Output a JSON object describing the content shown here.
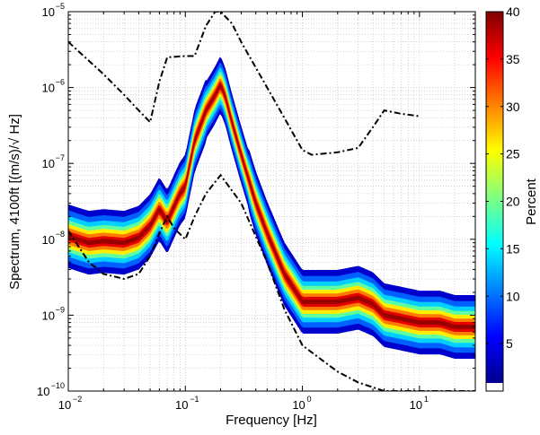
{
  "chart_data": {
    "type": "heatmap",
    "title": "",
    "xlabel": "Frequency [Hz]",
    "ylabel": "Spectrum, 4100ft [(m/s)/√ Hz]",
    "x_scale": "log",
    "y_scale": "log",
    "xlim": [
      0.01,
      30
    ],
    "ylim": [
      1e-10,
      1e-05
    ],
    "x_ticks": [
      {
        "value": 0.01,
        "base": "10",
        "exp": "−2"
      },
      {
        "value": 0.1,
        "base": "10",
        "exp": "−1"
      },
      {
        "value": 1,
        "base": "10",
        "exp": "0"
      },
      {
        "value": 10,
        "base": "10",
        "exp": "1"
      }
    ],
    "y_ticks": [
      {
        "value": 1e-10,
        "base": "10",
        "exp": "−10"
      },
      {
        "value": 1e-09,
        "base": "10",
        "exp": "−9"
      },
      {
        "value": 1e-08,
        "base": "10",
        "exp": "−8"
      },
      {
        "value": 1e-07,
        "base": "10",
        "exp": "−7"
      },
      {
        "value": 1e-06,
        "base": "10",
        "exp": "−6"
      },
      {
        "value": 1e-05,
        "base": "10",
        "exp": "−5"
      }
    ],
    "grid": true,
    "colorbar": {
      "label": "Percent",
      "range": [
        0,
        40
      ],
      "ticks": [
        "5",
        "10",
        "15",
        "20",
        "25",
        "30",
        "35",
        "40"
      ],
      "colormap": "jet"
    },
    "median_curve": {
      "x": [
        0.01,
        0.012,
        0.015,
        0.02,
        0.03,
        0.04,
        0.05,
        0.06,
        0.07,
        0.08,
        0.09,
        0.1,
        0.12,
        0.15,
        0.18,
        0.2,
        0.22,
        0.25,
        0.3,
        0.4,
        0.5,
        0.7,
        1.0,
        1.3,
        2,
        3,
        4,
        5,
        7,
        10,
        15,
        20,
        30
      ],
      "y": [
        1.1e-08,
        1e-08,
        9e-09,
        9.5e-09,
        9e-09,
        1.05e-08,
        1.5e-08,
        2.5e-08,
        1.7e-08,
        2.7e-08,
        4e-08,
        5e-08,
        2e-07,
        5e-07,
        8e-07,
        1.1e-06,
        7.5e-07,
        3.5e-07,
        1.3e-07,
        3e-08,
        1.2e-08,
        3.5e-09,
        1.5e-09,
        1.5e-09,
        1.5e-09,
        1.7e-09,
        1.4e-09,
        1e-09,
        9e-10,
        8e-10,
        8e-10,
        7e-10,
        7e-10
      ]
    },
    "upper_bound": {
      "x": [
        0.01,
        0.02,
        0.03,
        0.04,
        0.05,
        0.06,
        0.07,
        0.1,
        0.12,
        0.15,
        0.18,
        0.2,
        0.25,
        0.3,
        0.5,
        0.7,
        1.0,
        1.2,
        2,
        3,
        4,
        5,
        7,
        10
      ],
      "y": [
        4e-06,
        1.5e-06,
        8e-07,
        5e-07,
        3.5e-07,
        1.2e-06,
        2.5e-06,
        2.6e-06,
        2.6e-06,
        6.5e-06,
        1e-05,
        1e-05,
        7e-06,
        4e-06,
        1e-06,
        4e-07,
        1.5e-07,
        1.3e-07,
        1.4e-07,
        1.6e-07,
        3e-07,
        5e-07,
        4.5e-07,
        4.2e-07
      ]
    },
    "lower_bound": {
      "x": [
        0.01,
        0.015,
        0.02,
        0.03,
        0.04,
        0.05,
        0.06,
        0.07,
        0.08,
        0.1,
        0.12,
        0.15,
        0.2,
        0.3,
        0.5,
        0.7,
        1.0,
        1.5,
        2,
        3,
        5,
        10,
        20,
        30
      ],
      "y": [
        1.3e-08,
        5e-09,
        3.5e-09,
        3e-09,
        3.5e-09,
        6e-09,
        1.2e-08,
        2e-08,
        1.4e-08,
        1e-08,
        2e-08,
        4e-08,
        7e-08,
        3e-08,
        5e-09,
        1.2e-09,
        4e-10,
        2.5e-10,
        1.8e-10,
        1.3e-10,
        1e-10,
        1e-10,
        1e-10,
        1e-10
      ]
    }
  }
}
